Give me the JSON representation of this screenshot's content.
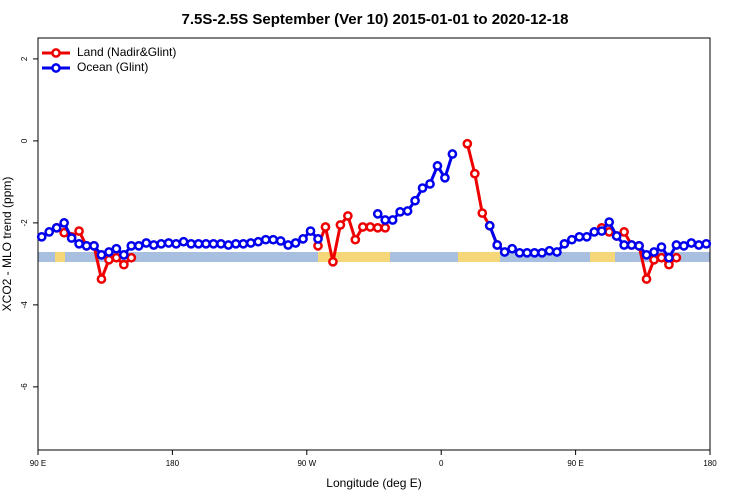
{
  "chart_data": {
    "type": "line",
    "title": "7.5S-2.5S September (Ver 10)   2015-01-01 to 2020-12-18",
    "xlabel": "Longitude (deg E)",
    "ylabel": "XCO2 - MLO trend (ppm)",
    "legend": "top-left",
    "xlim": [
      90,
      540
    ],
    "ylim": [
      -7.54,
      2.51
    ],
    "xticks": [
      {
        "value": 90,
        "label": "90 E"
      },
      180,
      {
        "value": 270,
        "label": "90 W"
      },
      {
        "value": 360,
        "label": "0"
      },
      {
        "value": 450,
        "label": "90 E"
      },
      {
        "value": 540,
        "label": "180"
      }
    ],
    "yticks": [
      2,
      0,
      -2,
      -4,
      -6
    ],
    "x": [
      92.5,
      97.5,
      102.5,
      107.5,
      112.5,
      117.5,
      122.5,
      127.5,
      132.5,
      137.5,
      142.5,
      147.5,
      152.5,
      157.5,
      162.5,
      167.5,
      172.5,
      177.5,
      182.5,
      187.5,
      192.5,
      197.5,
      202.5,
      207.5,
      212.5,
      217.5,
      222.5,
      227.5,
      232.5,
      237.5,
      242.5,
      247.5,
      252.5,
      257.5,
      262.5,
      267.5,
      272.5,
      277.5,
      282.5,
      287.5,
      292.5,
      297.5,
      302.5,
      307.5,
      312.5,
      317.5,
      322.5,
      327.5,
      332.5,
      337.5,
      342.5,
      347.5,
      352.5,
      357.5,
      362.5,
      367.5,
      372.5,
      377.5,
      382.5,
      387.5,
      392.5,
      397.5,
      402.5,
      407.5,
      412.5,
      417.5,
      422.5,
      427.5,
      432.5,
      437.5,
      442.5,
      447.5,
      452.5,
      457.5,
      462.5,
      467.5,
      472.5,
      477.5,
      482.5,
      487.5,
      492.5,
      497.5,
      502.5,
      507.5,
      512.5,
      517.5,
      522.5,
      527.5,
      532.5,
      537.5
    ],
    "series": [
      {
        "name": "Land (Nadir&Glint)",
        "color": "#ee0000",
        "values": [
          null,
          null,
          -2.12,
          -2.24,
          -2.34,
          -2.2,
          -2.56,
          -2.56,
          -3.37,
          -2.9,
          -2.85,
          -3.02,
          -2.85,
          null,
          null,
          null,
          null,
          null,
          null,
          null,
          null,
          null,
          null,
          null,
          null,
          null,
          null,
          null,
          null,
          null,
          null,
          null,
          null,
          null,
          null,
          null,
          null,
          -2.56,
          -2.1,
          -2.95,
          -2.05,
          -1.83,
          -2.41,
          -2.1,
          -2.1,
          -2.12,
          -2.12,
          null,
          null,
          null,
          null,
          null,
          null,
          null,
          null,
          null,
          null,
          -0.07,
          -0.8,
          -1.76,
          -2.07,
          -2.54,
          null,
          null,
          null,
          null,
          null,
          null,
          null,
          null,
          null,
          null,
          null,
          null,
          null,
          -2.12,
          -2.22,
          -2.32,
          -2.22,
          -2.54,
          -2.56,
          -3.37,
          -2.9,
          -2.85,
          -3.02,
          -2.85,
          null,
          null,
          null,
          null
        ]
      },
      {
        "name": "Ocean (Glint)",
        "color": "#0000ee",
        "values": [
          -2.34,
          -2.22,
          -2.12,
          -2.0,
          -2.37,
          -2.51,
          -2.56,
          -2.56,
          -2.78,
          -2.71,
          -2.63,
          -2.78,
          -2.56,
          -2.56,
          -2.49,
          -2.54,
          -2.51,
          -2.49,
          -2.51,
          -2.46,
          -2.51,
          -2.51,
          -2.51,
          -2.51,
          -2.51,
          -2.54,
          -2.51,
          -2.51,
          -2.49,
          -2.46,
          -2.41,
          -2.41,
          -2.44,
          -2.54,
          -2.49,
          -2.39,
          -2.2,
          -2.39,
          null,
          null,
          null,
          null,
          null,
          null,
          null,
          -1.78,
          -1.93,
          -1.93,
          -1.73,
          -1.71,
          -1.46,
          -1.15,
          -1.05,
          -0.61,
          -0.9,
          -0.32,
          null,
          null,
          null,
          null,
          -2.07,
          -2.54,
          -2.71,
          -2.63,
          -2.73,
          -2.73,
          -2.73,
          -2.73,
          -2.68,
          -2.71,
          -2.51,
          -2.41,
          -2.34,
          -2.34,
          -2.22,
          -2.2,
          -1.98,
          -2.32,
          -2.54,
          -2.54,
          -2.56,
          -2.78,
          -2.71,
          -2.59,
          -2.85,
          -2.54,
          -2.56,
          -2.49,
          -2.54,
          -2.51
        ]
      }
    ]
  }
}
